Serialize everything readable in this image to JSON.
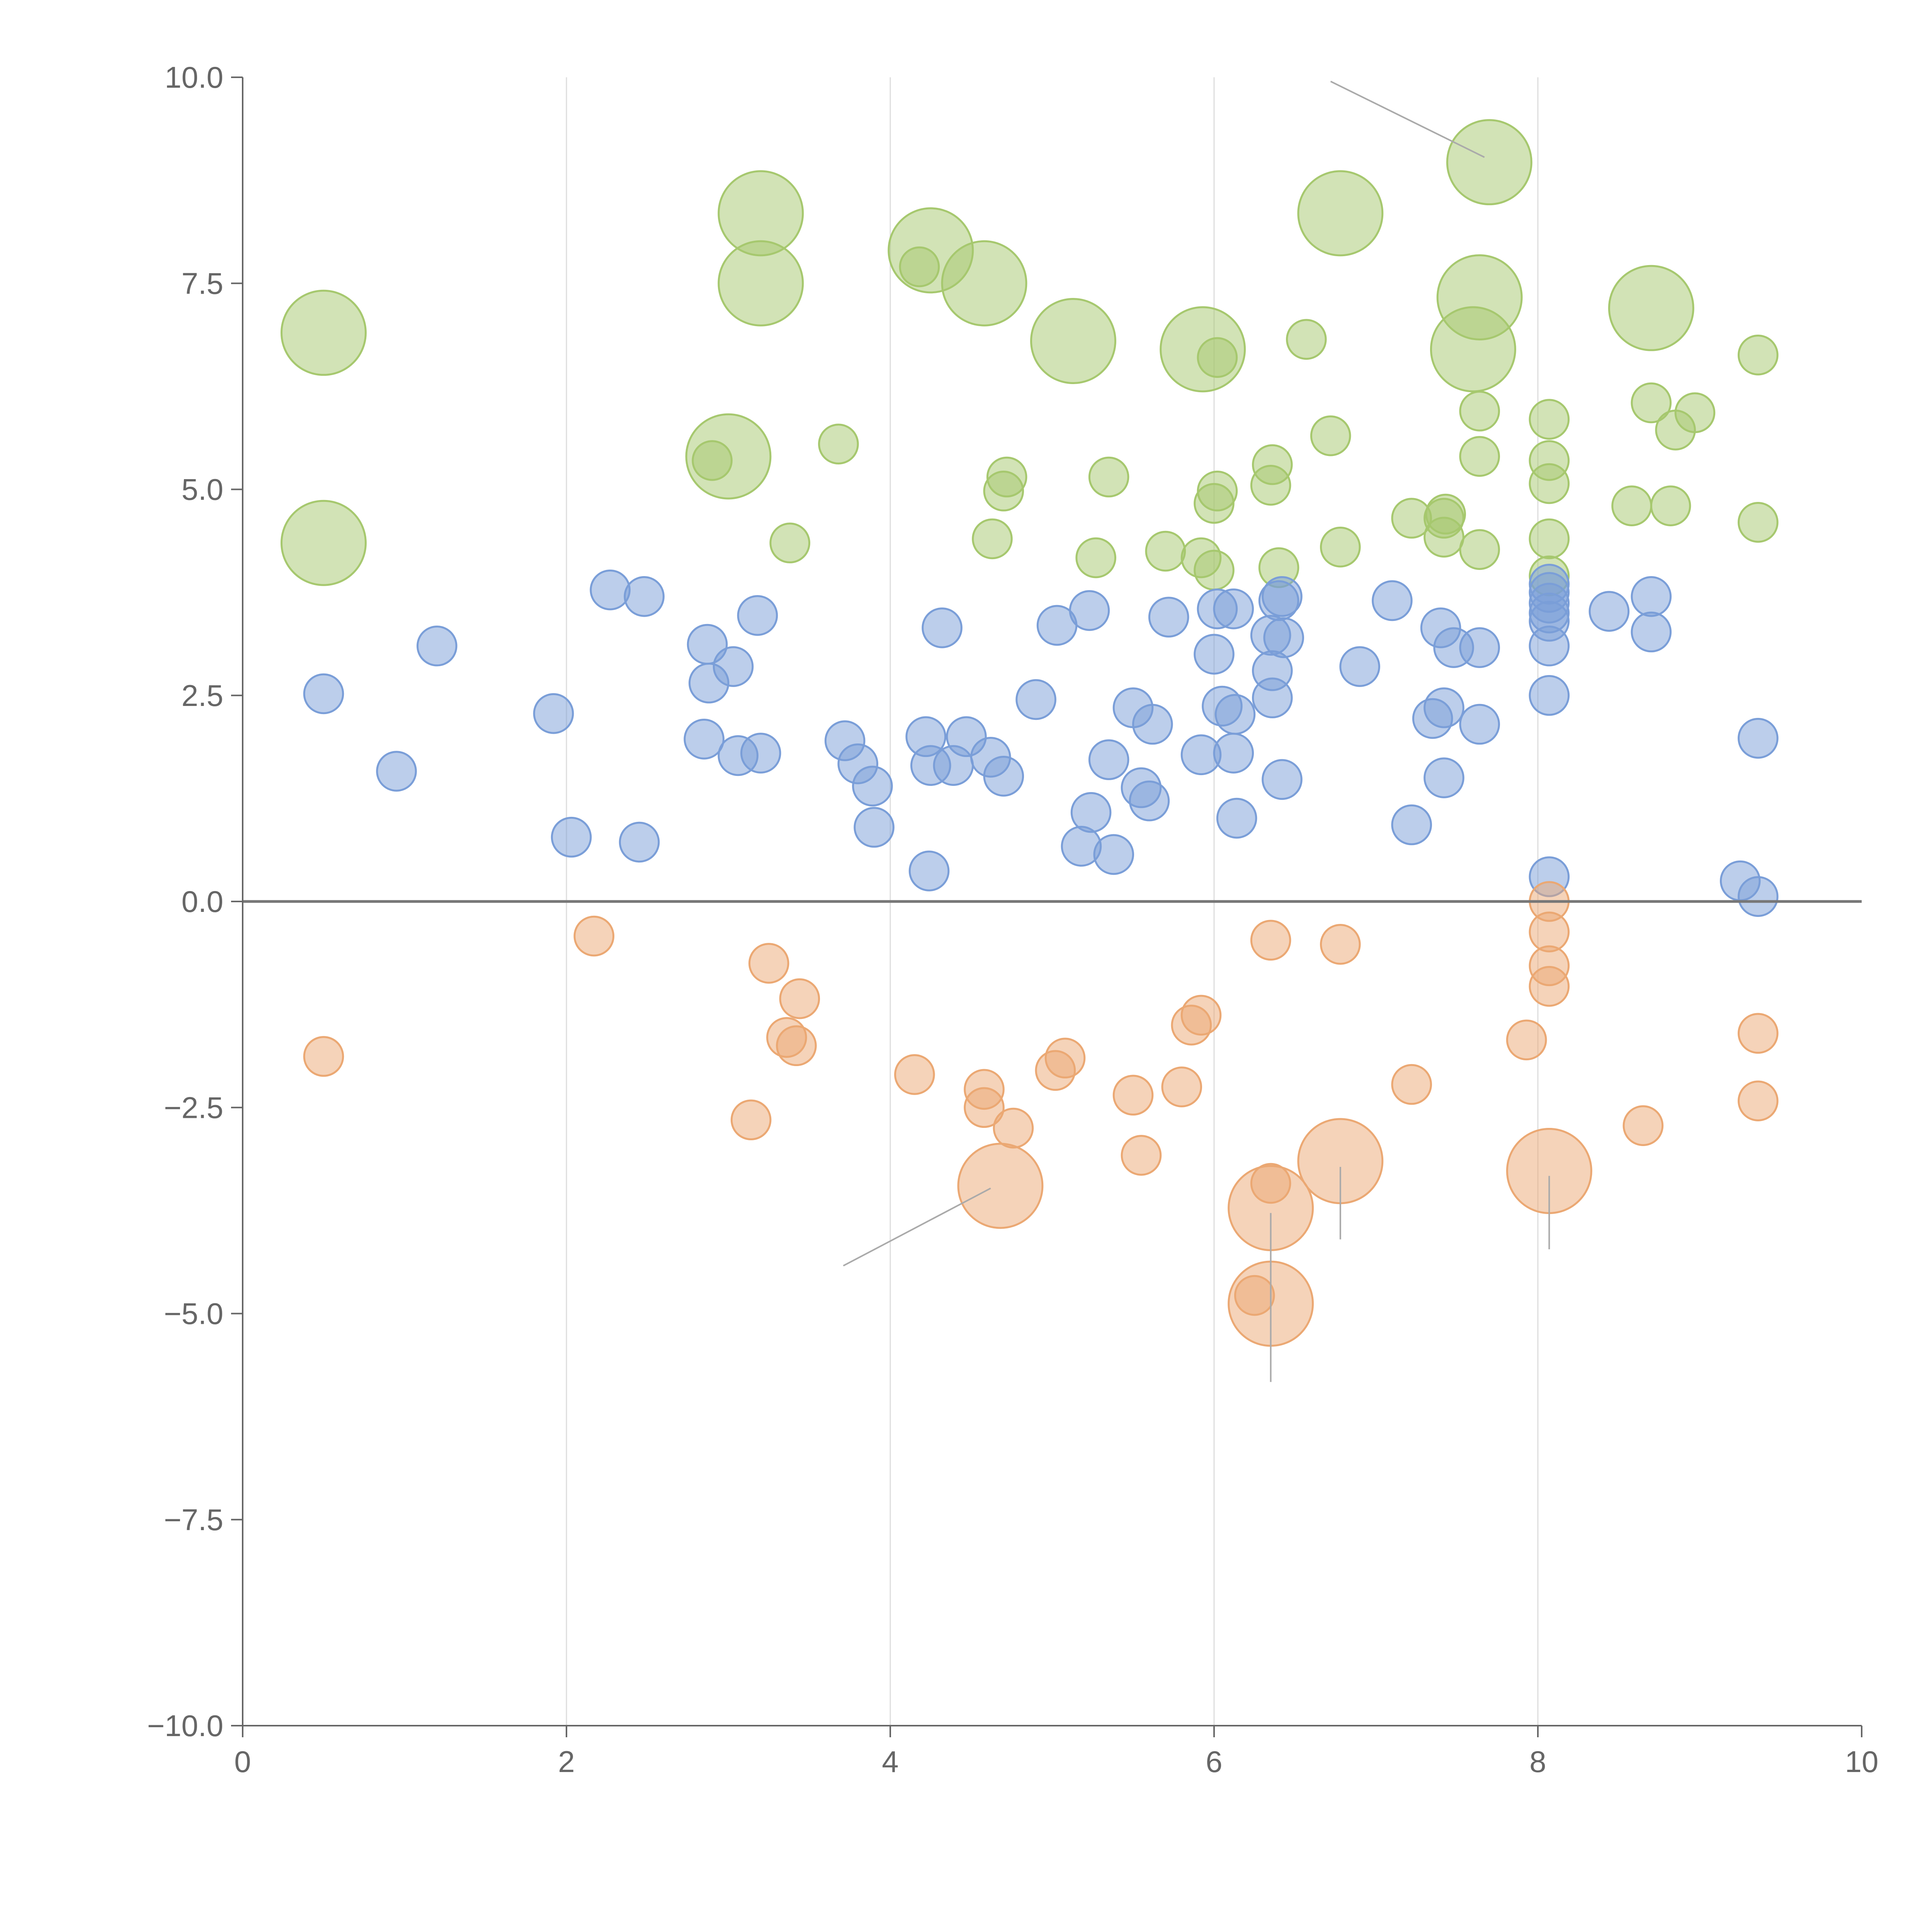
{
  "chart_data": {
    "type": "scatter",
    "title": "",
    "xlabel": "",
    "ylabel": "",
    "xlim": [
      0,
      10
    ],
    "ylim": [
      -10,
      10
    ],
    "xticks": [
      0,
      2,
      4,
      6,
      8,
      10
    ],
    "yticks": [
      -10,
      -7.5,
      -5,
      -2.5,
      0,
      2.5,
      5,
      7.5,
      10
    ],
    "xtick_labels": [
      "0",
      "2",
      "4",
      "6",
      "8",
      "10"
    ],
    "ytick_labels": [
      "−10.0",
      "−7.5",
      "−5.0",
      "−2.5",
      "0.0",
      "2.5",
      "5.0",
      "7.5",
      "10.0"
    ],
    "vertical_gridlines": [
      2,
      4,
      6,
      8
    ],
    "zero_line": 0,
    "colors": {
      "background": "#ffffff",
      "axis": "#666666",
      "grid": "#dddddd",
      "zero_line": "#777777",
      "leader_line": "#aaaaaa"
    },
    "series": [
      {
        "name": "green",
        "color": "#a6c86e",
        "points": [
          {
            "x": 0.5,
            "y": 6.9,
            "r": 0.26
          },
          {
            "x": 0.5,
            "y": 4.35,
            "r": 0.26
          },
          {
            "x": 2.9,
            "y": 5.35,
            "r": 0.12
          },
          {
            "x": 3.0,
            "y": 5.4,
            "r": 0.26
          },
          {
            "x": 3.2,
            "y": 8.35,
            "r": 0.26
          },
          {
            "x": 3.2,
            "y": 7.5,
            "r": 0.26
          },
          {
            "x": 3.38,
            "y": 4.35,
            "r": 0.12
          },
          {
            "x": 3.68,
            "y": 5.55,
            "r": 0.12
          },
          {
            "x": 4.18,
            "y": 7.7,
            "r": 0.12
          },
          {
            "x": 4.25,
            "y": 7.9,
            "r": 0.26
          },
          {
            "x": 4.58,
            "y": 7.5,
            "r": 0.26
          },
          {
            "x": 4.63,
            "y": 4.4,
            "r": 0.12
          },
          {
            "x": 4.7,
            "y": 4.98,
            "r": 0.12
          },
          {
            "x": 4.72,
            "y": 5.15,
            "r": 0.12
          },
          {
            "x": 5.13,
            "y": 6.8,
            "r": 0.26
          },
          {
            "x": 5.27,
            "y": 4.17,
            "r": 0.12
          },
          {
            "x": 5.35,
            "y": 5.15,
            "r": 0.12
          },
          {
            "x": 5.7,
            "y": 4.25,
            "r": 0.12
          },
          {
            "x": 5.92,
            "y": 4.17,
            "r": 0.12
          },
          {
            "x": 5.93,
            "y": 6.7,
            "r": 0.26
          },
          {
            "x": 6.0,
            "y": 4.02,
            "r": 0.12
          },
          {
            "x": 6.0,
            "y": 4.83,
            "r": 0.12
          },
          {
            "x": 6.02,
            "y": 4.98,
            "r": 0.12
          },
          {
            "x": 6.02,
            "y": 6.6,
            "r": 0.12
          },
          {
            "x": 6.35,
            "y": 5.05,
            "r": 0.12
          },
          {
            "x": 6.36,
            "y": 5.3,
            "r": 0.12
          },
          {
            "x": 6.4,
            "y": 4.05,
            "r": 0.12
          },
          {
            "x": 6.57,
            "y": 6.82,
            "r": 0.12
          },
          {
            "x": 6.72,
            "y": 5.65,
            "r": 0.12
          },
          {
            "x": 6.78,
            "y": 8.35,
            "r": 0.26
          },
          {
            "x": 6.78,
            "y": 4.3,
            "r": 0.12
          },
          {
            "x": 7.22,
            "y": 4.65,
            "r": 0.12
          },
          {
            "x": 7.42,
            "y": 4.42,
            "r": 0.12
          },
          {
            "x": 7.42,
            "y": 4.65,
            "r": 0.12
          },
          {
            "x": 7.43,
            "y": 4.7,
            "r": 0.12
          },
          {
            "x": 7.6,
            "y": 6.7,
            "r": 0.26
          },
          {
            "x": 7.64,
            "y": 7.33,
            "r": 0.26
          },
          {
            "x": 7.64,
            "y": 4.27,
            "r": 0.12
          },
          {
            "x": 7.64,
            "y": 5.4,
            "r": 0.12
          },
          {
            "x": 7.64,
            "y": 5.95,
            "r": 0.12
          },
          {
            "x": 7.7,
            "y": 8.97,
            "r": 0.26
          },
          {
            "x": 8.07,
            "y": 3.95,
            "r": 0.12
          },
          {
            "x": 8.07,
            "y": 4.4,
            "r": 0.12
          },
          {
            "x": 8.07,
            "y": 5.07,
            "r": 0.12
          },
          {
            "x": 8.07,
            "y": 5.35,
            "r": 0.12
          },
          {
            "x": 8.07,
            "y": 5.85,
            "r": 0.12
          },
          {
            "x": 8.58,
            "y": 4.8,
            "r": 0.12
          },
          {
            "x": 8.7,
            "y": 7.2,
            "r": 0.26
          },
          {
            "x": 8.7,
            "y": 6.05,
            "r": 0.12
          },
          {
            "x": 8.82,
            "y": 4.8,
            "r": 0.12
          },
          {
            "x": 8.85,
            "y": 5.72,
            "r": 0.12
          },
          {
            "x": 8.97,
            "y": 5.93,
            "r": 0.12
          },
          {
            "x": 9.36,
            "y": 6.63,
            "r": 0.12
          },
          {
            "x": 9.36,
            "y": 4.6,
            "r": 0.12
          }
        ]
      },
      {
        "name": "blue",
        "color": "#7a9ed8",
        "points": [
          {
            "x": 0.5,
            "y": 2.52,
            "r": 0.12
          },
          {
            "x": 0.95,
            "y": 1.58,
            "r": 0.12
          },
          {
            "x": 1.2,
            "y": 3.1,
            "r": 0.12
          },
          {
            "x": 1.92,
            "y": 2.28,
            "r": 0.12
          },
          {
            "x": 2.03,
            "y": 0.78,
            "r": 0.12
          },
          {
            "x": 2.27,
            "y": 3.78,
            "r": 0.12
          },
          {
            "x": 2.45,
            "y": 0.72,
            "r": 0.12
          },
          {
            "x": 2.48,
            "y": 3.7,
            "r": 0.12
          },
          {
            "x": 2.85,
            "y": 1.97,
            "r": 0.12
          },
          {
            "x": 2.87,
            "y": 3.12,
            "r": 0.12
          },
          {
            "x": 2.88,
            "y": 2.65,
            "r": 0.12
          },
          {
            "x": 3.03,
            "y": 2.85,
            "r": 0.12
          },
          {
            "x": 3.06,
            "y": 1.77,
            "r": 0.12
          },
          {
            "x": 3.18,
            "y": 3.47,
            "r": 0.12
          },
          {
            "x": 3.2,
            "y": 1.8,
            "r": 0.12
          },
          {
            "x": 3.72,
            "y": 1.95,
            "r": 0.12
          },
          {
            "x": 3.8,
            "y": 1.67,
            "r": 0.12
          },
          {
            "x": 3.89,
            "y": 1.4,
            "r": 0.12
          },
          {
            "x": 3.9,
            "y": 0.9,
            "r": 0.12
          },
          {
            "x": 4.22,
            "y": 2.0,
            "r": 0.12
          },
          {
            "x": 4.24,
            "y": 0.37,
            "r": 0.12
          },
          {
            "x": 4.25,
            "y": 1.65,
            "r": 0.12
          },
          {
            "x": 4.32,
            "y": 3.32,
            "r": 0.12
          },
          {
            "x": 4.39,
            "y": 1.65,
            "r": 0.12
          },
          {
            "x": 4.47,
            "y": 2.0,
            "r": 0.12
          },
          {
            "x": 4.62,
            "y": 1.75,
            "r": 0.12
          },
          {
            "x": 4.7,
            "y": 1.52,
            "r": 0.12
          },
          {
            "x": 4.9,
            "y": 2.45,
            "r": 0.12
          },
          {
            "x": 5.03,
            "y": 3.35,
            "r": 0.12
          },
          {
            "x": 5.18,
            "y": 0.67,
            "r": 0.12
          },
          {
            "x": 5.23,
            "y": 3.53,
            "r": 0.12
          },
          {
            "x": 5.24,
            "y": 1.08,
            "r": 0.12
          },
          {
            "x": 5.35,
            "y": 1.72,
            "r": 0.12
          },
          {
            "x": 5.38,
            "y": 0.57,
            "r": 0.12
          },
          {
            "x": 5.5,
            "y": 2.35,
            "r": 0.12
          },
          {
            "x": 5.55,
            "y": 1.38,
            "r": 0.12
          },
          {
            "x": 5.6,
            "y": 1.22,
            "r": 0.12
          },
          {
            "x": 5.62,
            "y": 2.15,
            "r": 0.12
          },
          {
            "x": 5.72,
            "y": 3.45,
            "r": 0.12
          },
          {
            "x": 5.92,
            "y": 1.78,
            "r": 0.12
          },
          {
            "x": 6.0,
            "y": 3.0,
            "r": 0.12
          },
          {
            "x": 6.02,
            "y": 3.55,
            "r": 0.12
          },
          {
            "x": 6.05,
            "y": 2.37,
            "r": 0.12
          },
          {
            "x": 6.12,
            "y": 3.55,
            "r": 0.12
          },
          {
            "x": 6.12,
            "y": 1.8,
            "r": 0.12
          },
          {
            "x": 6.13,
            "y": 2.27,
            "r": 0.12
          },
          {
            "x": 6.14,
            "y": 1.01,
            "r": 0.12
          },
          {
            "x": 6.35,
            "y": 3.23,
            "r": 0.12
          },
          {
            "x": 6.36,
            "y": 2.8,
            "r": 0.12
          },
          {
            "x": 6.36,
            "y": 2.47,
            "r": 0.12
          },
          {
            "x": 6.4,
            "y": 3.65,
            "r": 0.12
          },
          {
            "x": 6.42,
            "y": 3.7,
            "r": 0.12
          },
          {
            "x": 6.42,
            "y": 1.48,
            "r": 0.12
          },
          {
            "x": 6.43,
            "y": 3.2,
            "r": 0.12
          },
          {
            "x": 6.9,
            "y": 2.85,
            "r": 0.12
          },
          {
            "x": 7.1,
            "y": 3.65,
            "r": 0.12
          },
          {
            "x": 7.22,
            "y": 0.93,
            "r": 0.12
          },
          {
            "x": 7.35,
            "y": 2.22,
            "r": 0.12
          },
          {
            "x": 7.4,
            "y": 3.32,
            "r": 0.12
          },
          {
            "x": 7.42,
            "y": 2.35,
            "r": 0.12
          },
          {
            "x": 7.42,
            "y": 1.5,
            "r": 0.12
          },
          {
            "x": 7.48,
            "y": 3.08,
            "r": 0.12
          },
          {
            "x": 7.64,
            "y": 3.08,
            "r": 0.12
          },
          {
            "x": 7.64,
            "y": 2.15,
            "r": 0.12
          },
          {
            "x": 8.07,
            "y": 3.85,
            "r": 0.12
          },
          {
            "x": 8.07,
            "y": 3.75,
            "r": 0.12
          },
          {
            "x": 8.07,
            "y": 3.62,
            "r": 0.12
          },
          {
            "x": 8.07,
            "y": 3.5,
            "r": 0.12
          },
          {
            "x": 8.07,
            "y": 3.4,
            "r": 0.12
          },
          {
            "x": 8.07,
            "y": 3.1,
            "r": 0.12
          },
          {
            "x": 8.07,
            "y": 2.5,
            "r": 0.12
          },
          {
            "x": 8.07,
            "y": 0.3,
            "r": 0.12
          },
          {
            "x": 8.44,
            "y": 3.52,
            "r": 0.12
          },
          {
            "x": 8.7,
            "y": 3.7,
            "r": 0.12
          },
          {
            "x": 8.7,
            "y": 3.27,
            "r": 0.12
          },
          {
            "x": 9.25,
            "y": 0.25,
            "r": 0.12
          },
          {
            "x": 9.36,
            "y": 1.98,
            "r": 0.12
          },
          {
            "x": 9.36,
            "y": 0.06,
            "r": 0.12
          }
        ]
      },
      {
        "name": "orange",
        "color": "#eba873",
        "points": [
          {
            "x": 0.5,
            "y": -1.88,
            "r": 0.12
          },
          {
            "x": 2.17,
            "y": -0.42,
            "r": 0.12
          },
          {
            "x": 3.14,
            "y": -2.65,
            "r": 0.12
          },
          {
            "x": 3.25,
            "y": -0.75,
            "r": 0.12
          },
          {
            "x": 3.36,
            "y": -1.65,
            "r": 0.12
          },
          {
            "x": 3.42,
            "y": -1.75,
            "r": 0.12
          },
          {
            "x": 3.44,
            "y": -1.18,
            "r": 0.12
          },
          {
            "x": 4.15,
            "y": -2.1,
            "r": 0.12
          },
          {
            "x": 4.58,
            "y": -2.28,
            "r": 0.12
          },
          {
            "x": 4.58,
            "y": -2.5,
            "r": 0.12
          },
          {
            "x": 4.68,
            "y": -3.45,
            "r": 0.26
          },
          {
            "x": 4.76,
            "y": -2.75,
            "r": 0.12
          },
          {
            "x": 5.02,
            "y": -2.05,
            "r": 0.12
          },
          {
            "x": 5.08,
            "y": -1.9,
            "r": 0.12
          },
          {
            "x": 5.5,
            "y": -2.35,
            "r": 0.12
          },
          {
            "x": 5.55,
            "y": -3.08,
            "r": 0.12
          },
          {
            "x": 5.8,
            "y": -2.25,
            "r": 0.12
          },
          {
            "x": 5.86,
            "y": -1.5,
            "r": 0.12
          },
          {
            "x": 5.92,
            "y": -1.38,
            "r": 0.12
          },
          {
            "x": 6.25,
            "y": -4.78,
            "r": 0.12
          },
          {
            "x": 6.35,
            "y": -0.47,
            "r": 0.12
          },
          {
            "x": 6.35,
            "y": -3.42,
            "r": 0.12
          },
          {
            "x": 6.35,
            "y": -3.72,
            "r": 0.26
          },
          {
            "x": 6.35,
            "y": -4.88,
            "r": 0.26
          },
          {
            "x": 6.78,
            "y": -0.52,
            "r": 0.12
          },
          {
            "x": 6.78,
            "y": -3.15,
            "r": 0.26
          },
          {
            "x": 7.22,
            "y": -2.22,
            "r": 0.12
          },
          {
            "x": 7.93,
            "y": -1.68,
            "r": 0.12
          },
          {
            "x": 8.07,
            "y": 0.0,
            "r": 0.12
          },
          {
            "x": 8.07,
            "y": -0.37,
            "r": 0.12
          },
          {
            "x": 8.07,
            "y": -0.78,
            "r": 0.12
          },
          {
            "x": 8.07,
            "y": -1.03,
            "r": 0.12
          },
          {
            "x": 8.07,
            "y": -3.27,
            "r": 0.26
          },
          {
            "x": 8.65,
            "y": -2.72,
            "r": 0.12
          },
          {
            "x": 9.36,
            "y": -1.6,
            "r": 0.12
          },
          {
            "x": 9.36,
            "y": -2.42,
            "r": 0.12
          }
        ]
      }
    ],
    "leader_lines": [
      {
        "x1": 6.72,
        "y1": 9.95,
        "x2": 7.67,
        "y2": 9.03
      },
      {
        "x1": 4.62,
        "y1": -3.48,
        "x2": 3.71,
        "y2": -4.42
      },
      {
        "x1": 6.78,
        "y1": -3.22,
        "x2": 6.78,
        "y2": -4.1
      },
      {
        "x1": 8.07,
        "y1": -3.33,
        "x2": 8.07,
        "y2": -4.22
      },
      {
        "x1": 6.35,
        "y1": -3.78,
        "x2": 6.35,
        "y2": -5.83
      }
    ]
  }
}
